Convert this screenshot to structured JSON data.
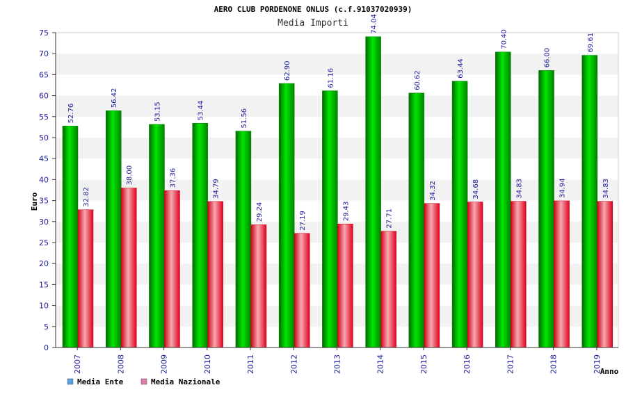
{
  "chart_data": {
    "type": "bar",
    "title": "AERO CLUB PORDENONE ONLUS (c.f.91037020939)",
    "subtitle": "Media Importi",
    "xlabel": "Anno",
    "ylabel": "Euro",
    "ylim": [
      0,
      75
    ],
    "yticks": [
      0,
      5,
      10,
      15,
      20,
      25,
      30,
      35,
      40,
      45,
      50,
      55,
      60,
      65,
      70,
      75
    ],
    "grid": true,
    "legend_position": "bottom-left",
    "categories": [
      "2007",
      "2008",
      "2009",
      "2010",
      "2011",
      "2012",
      "2013",
      "2014",
      "2015",
      "2016",
      "2017",
      "2018",
      "2019"
    ],
    "series": [
      {
        "name": "Media Ente",
        "color": "#00b400",
        "legend_color": "#5aa0e6",
        "values": [
          52.76,
          56.42,
          53.15,
          53.44,
          51.56,
          62.9,
          61.16,
          74.04,
          60.62,
          63.44,
          70.4,
          66.0,
          69.61
        ],
        "labels": [
          "52.76",
          "56.42",
          "53.15",
          "53.44",
          "51.56",
          "62.90",
          "61.16",
          "74.04",
          "60.62",
          "63.44",
          "70.40",
          "66.00",
          "69.61"
        ]
      },
      {
        "name": "Media Nazionale",
        "color": "#e8202a",
        "legend_color": "#e07aa8",
        "values": [
          32.82,
          38.0,
          37.36,
          34.79,
          29.24,
          27.19,
          29.43,
          27.71,
          34.32,
          34.68,
          34.83,
          34.94,
          34.83
        ],
        "labels": [
          "32.82",
          "38.00",
          "37.36",
          "34.79",
          "29.24",
          "27.19",
          "29.43",
          "27.71",
          "34.32",
          "34.68",
          "34.83",
          "34.94",
          "34.83"
        ]
      }
    ]
  }
}
